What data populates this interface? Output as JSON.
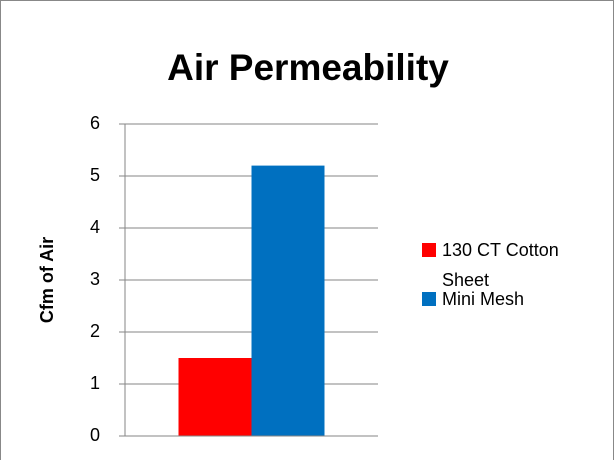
{
  "chart_data": {
    "type": "bar",
    "title": "Air Permeability",
    "y_label": "Cfm of Air",
    "categories": [
      null
    ],
    "series": [
      {
        "name": "130 CT Cotton Sheet",
        "color": "#ff0000",
        "values": [
          1.5
        ]
      },
      {
        "name": "Mini Mesh",
        "color": "#0070c0",
        "values": [
          5.2
        ]
      }
    ],
    "ylim": [
      0,
      6
    ],
    "yticks": [
      0,
      1,
      2,
      3,
      4,
      5,
      6
    ],
    "grid": true,
    "legend": "right"
  }
}
